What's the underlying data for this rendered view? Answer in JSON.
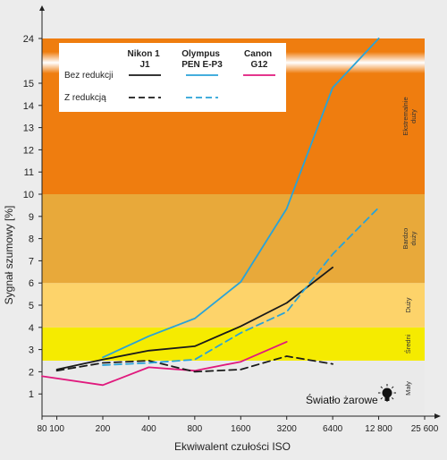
{
  "chart_data": {
    "type": "line",
    "xlabel": "Ekwiwalent czułości ISO",
    "ylabel": "Sygnał szumowy [%]",
    "x_ticks": [
      "80",
      "100",
      "200",
      "400",
      "800",
      "1600",
      "3200",
      "6400",
      "12 800",
      "25 600"
    ],
    "y_ticks": [
      "1",
      "2",
      "3",
      "4",
      "5",
      "6",
      "7",
      "8",
      "9",
      "10",
      "11",
      "12",
      "13",
      "14",
      "15",
      "24"
    ],
    "bands": [
      {
        "label": "Mały",
        "from": 0,
        "to": 2.5,
        "color": "#eaeaea"
      },
      {
        "label": "Średni",
        "from": 2.5,
        "to": 4,
        "color": "#f5eb00"
      },
      {
        "label": "Duży",
        "from": 4,
        "to": 6,
        "color": "#fdd36a"
      },
      {
        "label": "Bardzo duży",
        "from": 6,
        "to": 10,
        "color": "#e8a93a"
      },
      {
        "label": "Ekstremalnie duży",
        "from": 10,
        "to": 24,
        "color": "#ef7d0f"
      }
    ],
    "legend": {
      "columns": [
        "Nikon 1 J1",
        "Olympus PEN E-P3",
        "Canon G12"
      ],
      "rows": [
        "Bez redukcji",
        "Z redukcją"
      ]
    },
    "series": [
      {
        "name": "Nikon 1 J1 — Bez redukcji",
        "color": "#1a1a1a",
        "dashed": false,
        "x": [
          100,
          200,
          400,
          800,
          1600,
          3200,
          6400
        ],
        "y": [
          2.1,
          2.55,
          2.95,
          3.15,
          4.05,
          5.1,
          6.7
        ]
      },
      {
        "name": "Olympus PEN E-P3 — Bez redukcji",
        "color": "#29a3d8",
        "dashed": false,
        "x": [
          200,
          400,
          800,
          1600,
          3200,
          6400,
          12800
        ],
        "y": [
          2.65,
          3.6,
          4.4,
          6.05,
          9.35,
          14.8,
          24
        ]
      },
      {
        "name": "Canon G12 — Bez redukcji",
        "color": "#e0197d",
        "dashed": false,
        "x": [
          80,
          200,
          400,
          800,
          1600,
          3200
        ],
        "y": [
          1.8,
          1.4,
          2.2,
          2.05,
          2.45,
          3.35
        ]
      },
      {
        "name": "Nikon 1 J1 — Z redukcją",
        "color": "#1a1a1a",
        "dashed": true,
        "x": [
          100,
          200,
          400,
          800,
          1600,
          3200,
          6400
        ],
        "y": [
          2.05,
          2.4,
          2.5,
          2.0,
          2.1,
          2.7,
          2.35
        ]
      },
      {
        "name": "Olympus PEN E-P3 — Z redukcją",
        "color": "#29a3d8",
        "dashed": true,
        "x": [
          200,
          400,
          800,
          1600,
          3200,
          6400,
          12800
        ],
        "y": [
          2.3,
          2.4,
          2.55,
          3.75,
          4.7,
          7.3,
          9.4
        ]
      }
    ],
    "annotation": "Światło żarowe"
  }
}
